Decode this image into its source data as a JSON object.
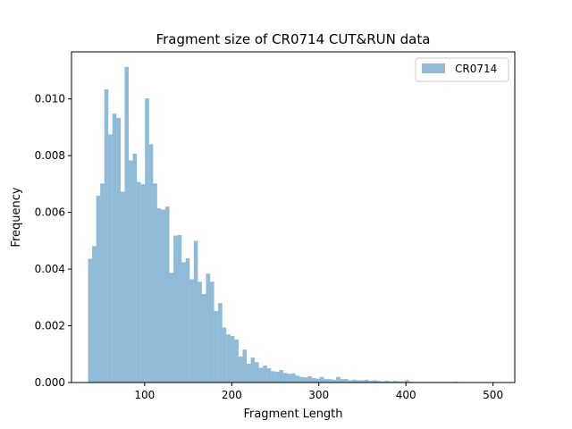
{
  "chart_data": {
    "type": "bar",
    "title": "Fragment size of CR0714 CUT&RUN data",
    "xlabel": "Fragment Length",
    "ylabel": "Frequency",
    "xlim": [
      16,
      525
    ],
    "ylim": [
      0,
      0.01166
    ],
    "x_ticks": [
      100,
      200,
      300,
      400,
      500
    ],
    "x_tick_labels": [
      "100",
      "200",
      "300",
      "400",
      "500"
    ],
    "y_ticks": [
      0,
      0.002,
      0.004,
      0.006,
      0.008,
      0.01
    ],
    "y_tick_labels": [
      "0.000",
      "0.002",
      "0.004",
      "0.006",
      "0.008",
      "0.010"
    ],
    "legend_position": "top-right",
    "bin_start": 35,
    "bin_width": 4.67,
    "series": [
      {
        "name": "CR0714",
        "color": "#1f77b4",
        "alpha": 0.5,
        "values": [
          0.00437,
          0.00481,
          0.00659,
          0.00702,
          0.01034,
          0.00875,
          0.00948,
          0.00933,
          0.00673,
          0.01113,
          0.00783,
          0.00807,
          0.00707,
          0.00699,
          0.01002,
          0.0084,
          0.00702,
          0.00614,
          0.0061,
          0.0062,
          0.00387,
          0.00518,
          0.0052,
          0.00424,
          0.00438,
          0.00364,
          0.005,
          0.00355,
          0.00312,
          0.00384,
          0.00356,
          0.00252,
          0.0028,
          0.00194,
          0.0017,
          0.00164,
          0.00152,
          0.00092,
          0.00116,
          0.00066,
          0.00088,
          0.00072,
          0.00052,
          0.0006,
          0.0005,
          0.0004,
          0.00038,
          0.00044,
          0.00034,
          0.00031,
          0.00032,
          0.00024,
          0.0002,
          0.00018,
          0.00022,
          0.00016,
          0.00014,
          0.0002,
          0.00012,
          0.00012,
          0.0001,
          0.0002,
          0.00012,
          0.00012,
          8e-05,
          0.0001,
          8e-05,
          8e-05,
          0.0001,
          6e-05,
          8e-05,
          6e-05,
          4e-05,
          6e-05,
          4e-05,
          6e-05,
          4e-05,
          4e-05,
          8e-05,
          3e-05,
          2e-05,
          2e-05,
          2e-05,
          2e-05,
          2e-05,
          2e-05,
          2e-05,
          2e-05,
          2e-05,
          2e-05,
          3e-05,
          1e-05,
          1e-05,
          1e-05,
          1e-05,
          1e-05,
          1e-05,
          1e-05,
          1e-05,
          1e-05,
          1e-05,
          1e-05,
          1e-05,
          1e-05
        ]
      }
    ]
  }
}
